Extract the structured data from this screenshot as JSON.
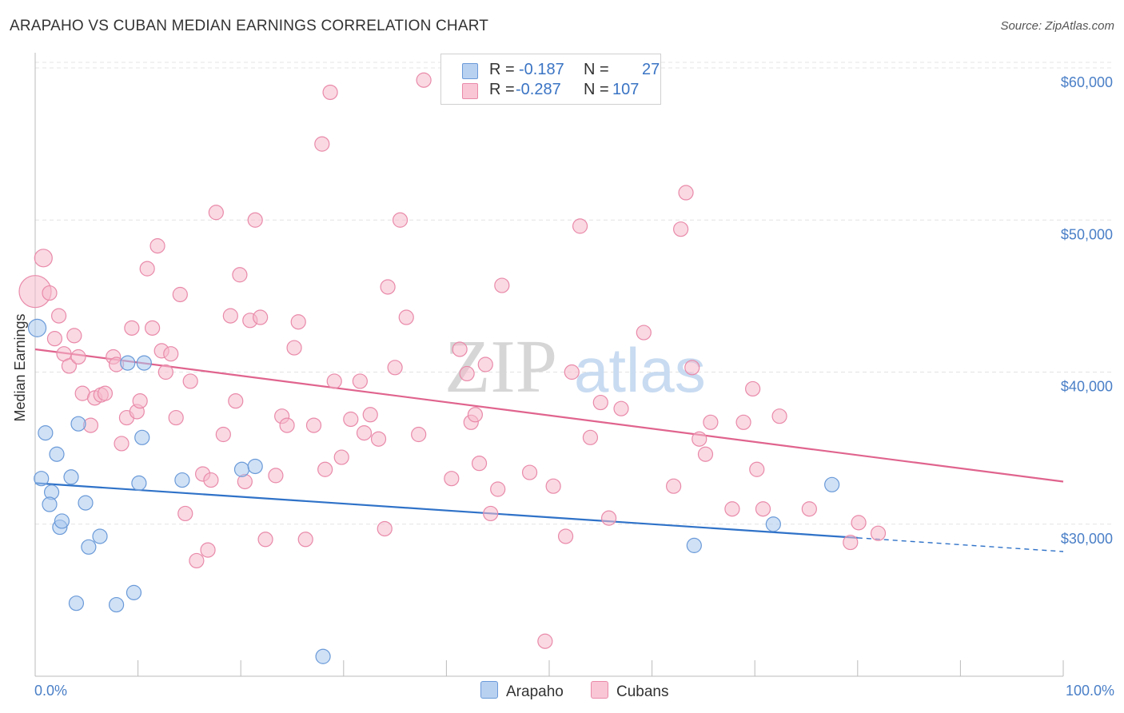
{
  "title": "ARAPAHO VS CUBAN MEDIAN EARNINGS CORRELATION CHART",
  "source": "Source: ZipAtlas.com",
  "watermark": {
    "zip": "ZIP",
    "atlas": "atlas"
  },
  "legend": {
    "rows": [
      {
        "r_label": "R =",
        "r_value": "-0.187",
        "n_label": "N =",
        "n_value": "27"
      },
      {
        "r_label": "R =",
        "r_value": "-0.287",
        "n_label": "N =",
        "n_value": "107"
      }
    ]
  },
  "bottom_legend": {
    "arapaho": "Arapaho",
    "cubans": "Cubans"
  },
  "colors": {
    "arapaho_fill": "#aac8ee",
    "arapaho_stroke": "#6a9ad8",
    "arapaho_line": "#2f72c8",
    "cubans_fill": "#f6b9cc",
    "cubans_stroke": "#e98aa9",
    "cubans_line": "#e0648e",
    "grid": "#e4e4e4",
    "tick_text": "#4a7fc7"
  },
  "chart_data": {
    "type": "scatter",
    "title": "ARAPAHO VS CUBAN MEDIAN EARNINGS CORRELATION CHART",
    "xlabel": "",
    "ylabel": "Median Earnings",
    "xlim": [
      0,
      100
    ],
    "ylim": [
      20000,
      61000
    ],
    "x_tick_labels": [
      "0.0%",
      "100.0%"
    ],
    "y_ticks": [
      30000,
      40000,
      50000,
      60000
    ],
    "y_tick_labels": [
      "$30,000",
      "$40,000",
      "$50,000",
      "$60,000"
    ],
    "series": [
      {
        "name": "Arapaho",
        "r": -0.187,
        "n": 27,
        "trend": {
          "x0": 0,
          "y0": 32700,
          "x1": 80,
          "y1": 29100,
          "dash_to_x": 100,
          "dash_to_y": 28200
        },
        "points": [
          [
            0.2,
            42900,
            11
          ],
          [
            0.6,
            33000,
            9
          ],
          [
            1.0,
            36000,
            9
          ],
          [
            1.6,
            32100,
            9
          ],
          [
            1.4,
            31300,
            9
          ],
          [
            2.1,
            34600,
            9
          ],
          [
            2.4,
            29800,
            9
          ],
          [
            2.6,
            30200,
            9
          ],
          [
            3.5,
            33100,
            9
          ],
          [
            4.2,
            36600,
            9
          ],
          [
            4.9,
            31400,
            9
          ],
          [
            5.2,
            28500,
            9
          ],
          [
            6.3,
            29200,
            9
          ],
          [
            4.0,
            24800,
            9
          ],
          [
            7.9,
            24700,
            9
          ],
          [
            9.0,
            40600,
            9
          ],
          [
            9.6,
            25500,
            9
          ],
          [
            10.1,
            32700,
            9
          ],
          [
            10.4,
            35700,
            9
          ],
          [
            10.6,
            40600,
            9
          ],
          [
            14.3,
            32900,
            9
          ],
          [
            20.1,
            33600,
            9
          ],
          [
            21.4,
            33800,
            9
          ],
          [
            28.0,
            21300,
            9
          ],
          [
            64.1,
            28600,
            9
          ],
          [
            71.8,
            30000,
            9
          ],
          [
            77.5,
            32600,
            9
          ]
        ]
      },
      {
        "name": "Cubans",
        "r": -0.287,
        "n": 107,
        "trend": {
          "x0": 0,
          "y0": 41500,
          "x1": 100,
          "y1": 32800
        },
        "points": [
          [
            0.0,
            45300,
            20
          ],
          [
            0.8,
            47500,
            11
          ],
          [
            1.4,
            45200,
            9
          ],
          [
            1.9,
            42200,
            9
          ],
          [
            2.3,
            43700,
            9
          ],
          [
            2.8,
            41200,
            9
          ],
          [
            3.3,
            40400,
            9
          ],
          [
            3.8,
            42400,
            9
          ],
          [
            4.2,
            41000,
            9
          ],
          [
            4.6,
            38600,
            9
          ],
          [
            5.4,
            36500,
            9
          ],
          [
            5.8,
            38300,
            9
          ],
          [
            6.4,
            38500,
            9
          ],
          [
            6.8,
            38600,
            9
          ],
          [
            7.6,
            41000,
            9
          ],
          [
            7.9,
            40500,
            9
          ],
          [
            8.4,
            35300,
            9
          ],
          [
            8.9,
            37000,
            9
          ],
          [
            9.4,
            42900,
            9
          ],
          [
            9.9,
            37400,
            9
          ],
          [
            10.2,
            38100,
            9
          ],
          [
            10.9,
            46800,
            9
          ],
          [
            11.4,
            42900,
            9
          ],
          [
            11.9,
            48300,
            9
          ],
          [
            12.3,
            41400,
            9
          ],
          [
            12.7,
            40000,
            9
          ],
          [
            13.2,
            41200,
            9
          ],
          [
            13.7,
            37000,
            9
          ],
          [
            14.1,
            45100,
            9
          ],
          [
            14.6,
            30700,
            9
          ],
          [
            15.1,
            39400,
            9
          ],
          [
            15.7,
            27600,
            9
          ],
          [
            16.3,
            33300,
            9
          ],
          [
            16.8,
            28300,
            9
          ],
          [
            17.1,
            32900,
            9
          ],
          [
            17.6,
            50500,
            9
          ],
          [
            18.3,
            35900,
            9
          ],
          [
            19.0,
            43700,
            9
          ],
          [
            19.5,
            38100,
            9
          ],
          [
            19.9,
            46400,
            9
          ],
          [
            20.4,
            32800,
            9
          ],
          [
            20.9,
            43400,
            9
          ],
          [
            21.4,
            50000,
            9
          ],
          [
            21.9,
            43600,
            9
          ],
          [
            22.4,
            29000,
            9
          ],
          [
            23.4,
            33200,
            9
          ],
          [
            24.0,
            37100,
            9
          ],
          [
            24.5,
            36500,
            9
          ],
          [
            25.2,
            41600,
            9
          ],
          [
            25.6,
            43300,
            9
          ],
          [
            26.3,
            29000,
            9
          ],
          [
            27.1,
            36500,
            9
          ],
          [
            27.9,
            55000,
            9
          ],
          [
            28.2,
            33600,
            9
          ],
          [
            28.7,
            58400,
            9
          ],
          [
            29.1,
            39400,
            9
          ],
          [
            29.8,
            34400,
            9
          ],
          [
            30.7,
            36900,
            9
          ],
          [
            31.6,
            39400,
            9
          ],
          [
            32.0,
            36000,
            9
          ],
          [
            32.6,
            37200,
            9
          ],
          [
            33.4,
            35600,
            9
          ],
          [
            34.0,
            29700,
            9
          ],
          [
            34.3,
            45600,
            9
          ],
          [
            35.0,
            40300,
            9
          ],
          [
            35.5,
            50000,
            9
          ],
          [
            36.1,
            43600,
            9
          ],
          [
            37.3,
            35900,
            9
          ],
          [
            37.8,
            59200,
            9
          ],
          [
            40.5,
            33000,
            9
          ],
          [
            41.3,
            41500,
            9
          ],
          [
            42.0,
            39900,
            9
          ],
          [
            42.4,
            36700,
            9
          ],
          [
            42.8,
            37200,
            9
          ],
          [
            43.2,
            34000,
            9
          ],
          [
            43.8,
            40500,
            9
          ],
          [
            44.3,
            30700,
            9
          ],
          [
            45.0,
            32300,
            9
          ],
          [
            45.4,
            45700,
            9
          ],
          [
            48.1,
            33400,
            9
          ],
          [
            49.6,
            22300,
            9
          ],
          [
            50.4,
            32500,
            9
          ],
          [
            51.6,
            29200,
            9
          ],
          [
            52.2,
            40000,
            9
          ],
          [
            53.0,
            49600,
            9
          ],
          [
            54.0,
            35700,
            9
          ],
          [
            55.0,
            38000,
            9
          ],
          [
            55.8,
            30400,
            9
          ],
          [
            57.0,
            37600,
            9
          ],
          [
            59.2,
            42600,
            9
          ],
          [
            62.1,
            32500,
            9
          ],
          [
            62.8,
            49400,
            9
          ],
          [
            63.3,
            51800,
            9
          ],
          [
            63.9,
            40300,
            9
          ],
          [
            64.6,
            35600,
            9
          ],
          [
            65.2,
            34600,
            9
          ],
          [
            65.7,
            36700,
            9
          ],
          [
            67.8,
            31000,
            9
          ],
          [
            68.9,
            36700,
            9
          ],
          [
            69.8,
            38900,
            9
          ],
          [
            70.2,
            33600,
            9
          ],
          [
            70.8,
            31000,
            9
          ],
          [
            72.4,
            37100,
            9
          ],
          [
            75.3,
            31000,
            9
          ],
          [
            79.3,
            28800,
            9
          ],
          [
            80.1,
            30100,
            9
          ],
          [
            82.0,
            29400,
            9
          ]
        ]
      }
    ]
  }
}
